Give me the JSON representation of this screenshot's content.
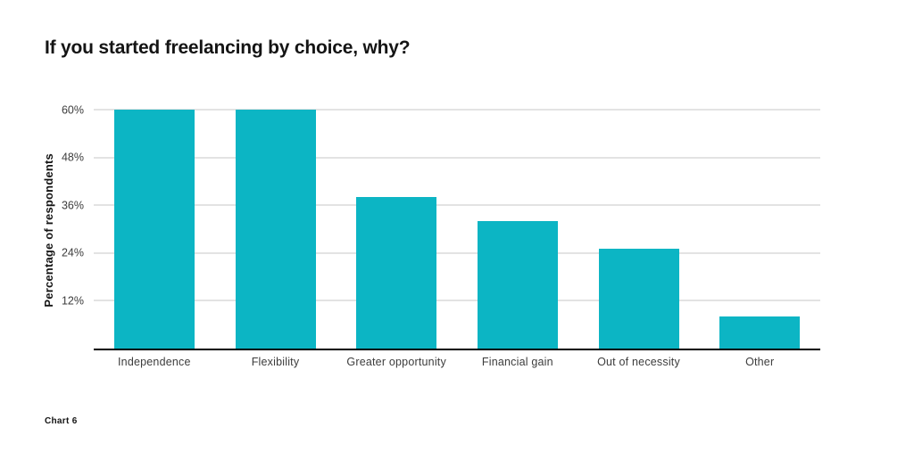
{
  "title": "If you started freelancing by choice, why?",
  "footer": {
    "caption": "Chart 6"
  },
  "colors": {
    "bar": "#0cb5c4",
    "gridline": "#c7c7c7",
    "axis": "#000000",
    "title_text": "#141414",
    "tick_text": "#3c3c3c"
  },
  "chart_data": {
    "type": "bar",
    "title": "If you started freelancing by choice, why?",
    "categories": [
      "Independence",
      "Flexibility",
      "Greater opportunity",
      "Financial gain",
      "Out of necessity",
      "Other"
    ],
    "values": [
      60,
      60,
      38,
      32,
      25,
      8
    ],
    "xlabel": "",
    "ylabel": "Percentage of respondents",
    "ylim": [
      0,
      60
    ],
    "yticks": [
      12,
      24,
      36,
      48,
      60
    ],
    "ytick_labels": [
      "12%",
      "24%",
      "36%",
      "48%",
      "60%"
    ],
    "grid": true,
    "legend": false
  }
}
